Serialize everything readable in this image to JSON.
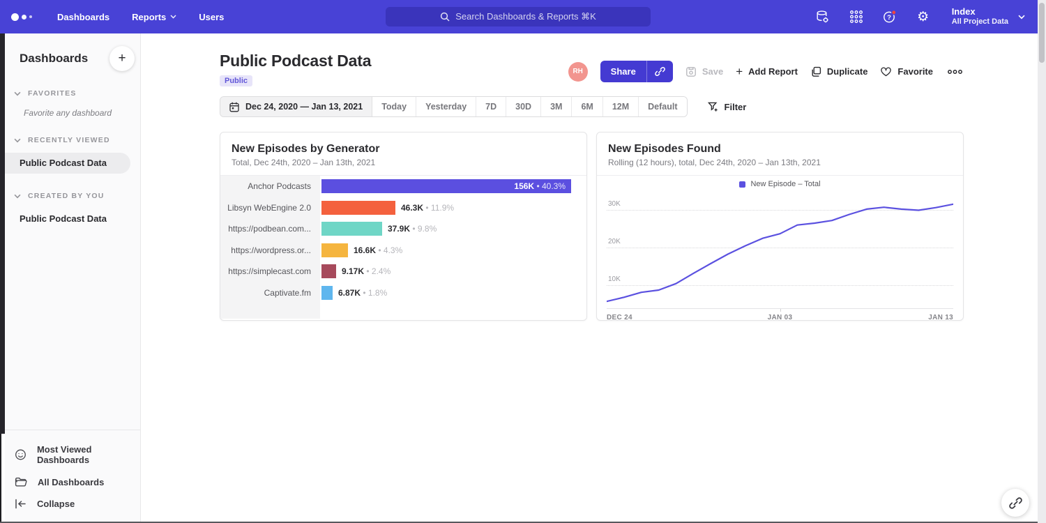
{
  "icons": {
    "plus": "+"
  },
  "topnav": {
    "nav_items": [
      {
        "label": "Dashboards",
        "has_menu": false
      },
      {
        "label": "Reports",
        "has_menu": true
      },
      {
        "label": "Users",
        "has_menu": false
      }
    ],
    "search_placeholder": "Search Dashboards & Reports ⌘K",
    "project_name": "Index",
    "project_scope": "All Project Data"
  },
  "sidebar": {
    "title": "Dashboards",
    "sections": [
      {
        "label": "FAVORITES",
        "empty_text": "Favorite any dashboard",
        "items": []
      },
      {
        "label": "RECENTLY VIEWED",
        "items": [
          {
            "label": "Public Podcast Data",
            "selected": true
          }
        ]
      },
      {
        "label": "CREATED BY YOU",
        "items": [
          {
            "label": "Public Podcast Data",
            "selected": false
          }
        ]
      }
    ],
    "footer": [
      {
        "label": "Most Viewed Dashboards",
        "icon": "smiley-icon"
      },
      {
        "label": "All Dashboards",
        "icon": "folder-icon"
      },
      {
        "label": "Collapse",
        "icon": "collapse-icon"
      }
    ]
  },
  "header": {
    "title": "Public Podcast Data",
    "badge": "Public",
    "avatar": "RH",
    "actions": {
      "share": "Share",
      "save": "Save",
      "add_report": "Add Report",
      "duplicate": "Duplicate",
      "favorite": "Favorite"
    }
  },
  "daterange": {
    "range": "Dec 24, 2020 — Jan 13, 2021",
    "presets": [
      "Today",
      "Yesterday",
      "7D",
      "30D",
      "3M",
      "6M",
      "12M",
      "Default"
    ],
    "filter": "Filter"
  },
  "chart_data": [
    {
      "type": "bar",
      "orientation": "horizontal",
      "title": "New Episodes by Generator",
      "subtitle": "Total, Dec 24th, 2020 – Jan 13th, 2021",
      "categories": [
        "Anchor Podcasts",
        "Libsyn WebEngine 2.0",
        "https://podbean.com...",
        "https://wordpress.or...",
        "https://simplecast.com",
        "Captivate.fm"
      ],
      "values": [
        156000,
        46300,
        37900,
        16600,
        9170,
        6870
      ],
      "value_labels": [
        "156K",
        "46.3K",
        "37.9K",
        "16.6K",
        "9.17K",
        "6.87K"
      ],
      "percent_labels": [
        "40.3%",
        "11.9%",
        "9.8%",
        "4.3%",
        "2.4%",
        "1.8%"
      ],
      "bar_colors": [
        "#5b4fe0",
        "#f4613e",
        "#6fd6c6",
        "#f5b53f",
        "#a74a5c",
        "#5fb6ee"
      ],
      "xlim": [
        0,
        156000
      ]
    },
    {
      "type": "line",
      "title": "New Episodes Found",
      "subtitle": "Rolling (12 hours), total, Dec 24th, 2020 – Jan 13th, 2021",
      "legend": [
        "New Episode – Total"
      ],
      "series_color": "#5b51e0",
      "x_ticks": [
        "DEC 24",
        "JAN 03",
        "JAN 13"
      ],
      "y_ticks": [
        {
          "v": 10000,
          "label": "10K"
        },
        {
          "v": 20000,
          "label": "20K"
        },
        {
          "v": 30000,
          "label": "30K"
        }
      ],
      "ylim": [
        4000,
        33500
      ],
      "values": [
        5800,
        6900,
        8200,
        8800,
        10500,
        13200,
        15800,
        18300,
        20500,
        22500,
        23700,
        26000,
        26500,
        27200,
        28800,
        30200,
        30700,
        30200,
        29900,
        30600,
        31500
      ],
      "grid": "dotted-horizontal"
    }
  ]
}
